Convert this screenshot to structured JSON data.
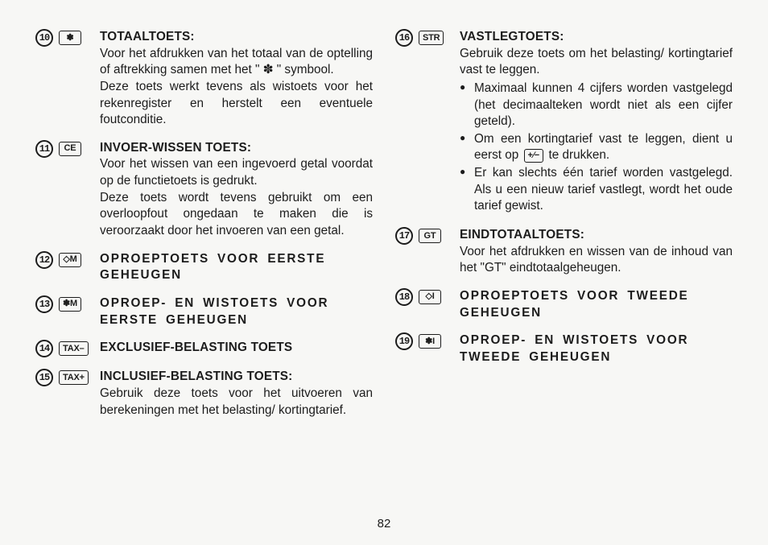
{
  "pageNumber": "82",
  "left": [
    {
      "num": "10",
      "key": "✽",
      "title": "TOTAALTOETS:",
      "titleSpaced": false,
      "paras": [
        "Voor het afdrukken van het totaal van de optelling of aftrekking samen met het \" ✽ \" symbool.",
        "Deze toets werkt tevens als wistoets voor het rekenregister en herstelt een eventuele foutconditie."
      ]
    },
    {
      "num": "11",
      "key": "CE",
      "title": "INVOER-WISSEN TOETS:",
      "titleSpaced": false,
      "paras": [
        "Voor het wissen van een ingevoerd getal voordat op de functietoets is gedrukt.",
        "Deze toets wordt tevens gebruikt om een overloopfout ongedaan te maken die is veroorzaakt door het invoeren van een getal."
      ]
    },
    {
      "num": "12",
      "key": "◇M",
      "title": "OPROEPTOETS VOOR EERSTE GEHEUGEN",
      "titleSpaced": true
    },
    {
      "num": "13",
      "key": "✽M",
      "title": "OPROEP- EN WISTOETS VOOR EERSTE GEHEUGEN",
      "titleSpaced": true
    },
    {
      "num": "14",
      "key": "TAX–",
      "title": "EXCLUSIEF-BELASTING TOETS",
      "titleSpaced": false
    },
    {
      "num": "15",
      "key": "TAX+",
      "title": "INCLUSIEF-BELASTING TOETS:",
      "titleSpaced": false,
      "paras": [
        "Gebruik deze toets voor het uitvoeren van berekeningen met het belasting/ kortingtarief."
      ]
    }
  ],
  "right": [
    {
      "num": "16",
      "key": "STR",
      "title": "VASTLEGTOETS:",
      "titleSpaced": false,
      "paras": [
        "Gebruik deze toets om het belasting/ kortingtarief vast te leggen."
      ],
      "bullets": [
        "Maximaal kunnen 4 cijfers worden vastgelegd (het decimaalteken wordt niet als een cijfer geteld).",
        "Om een kortingtarief vast te leggen, dient u eerst op",
        "Er kan slechts één tarief worden vastgelegd. Als u een nieuw tarief vastlegt, wordt het oude tarief gewist."
      ],
      "bulletInlineKey": "+⁄−",
      "bulletInlineAfter": "te drukken."
    },
    {
      "num": "17",
      "key": "GT",
      "title": "EINDTOTAALTOETS:",
      "titleSpaced": false,
      "paras": [
        "Voor het afdrukken en wissen van de inhoud van het \"GT\" eindtotaalge­heugen."
      ]
    },
    {
      "num": "18",
      "key": "◇I",
      "title": "OPROEPTOETS VOOR TWEEDE GEHEUGEN",
      "titleSpaced": true
    },
    {
      "num": "19",
      "key": "✽I",
      "title": "OPROEP- EN WISTOETS VOOR TWEEDE GEHEUGEN",
      "titleSpaced": true
    }
  ]
}
